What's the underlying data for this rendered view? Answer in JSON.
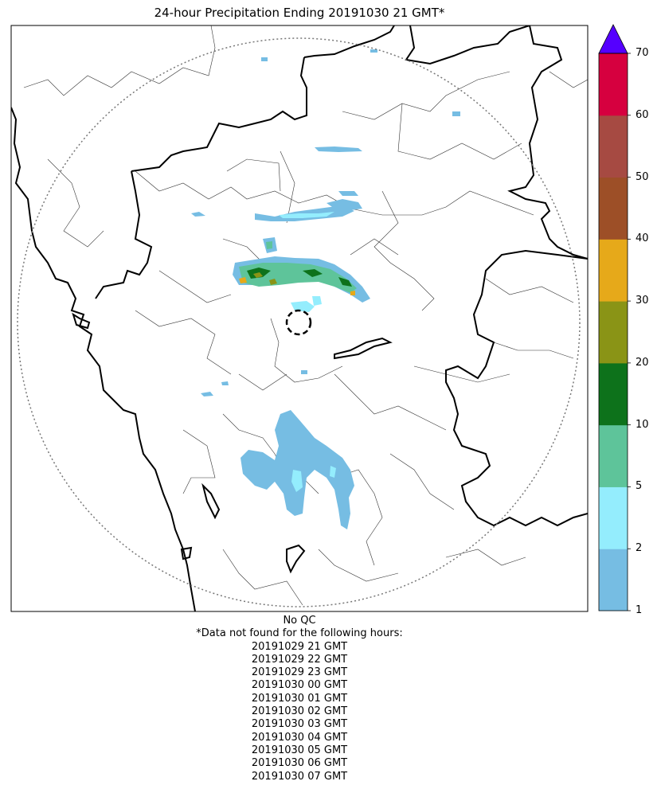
{
  "title": "24-hour Precipitation Ending 20191030 21 GMT*",
  "colorbar": {
    "boundaries": [
      1,
      2,
      5,
      10,
      20,
      30,
      40,
      50,
      60,
      70
    ],
    "tick_labels": [
      "1",
      "2",
      "5",
      "10",
      "20",
      "30",
      "40",
      "50",
      "60",
      "70"
    ],
    "colors": [
      "#76bde3",
      "#94edfd",
      "#5ec49a",
      "#0d721b",
      "#8a9416",
      "#e6a91a",
      "#9d4f27",
      "#a64a42",
      "#d6003f"
    ],
    "extend_max_color": "#5500ff"
  },
  "footer": {
    "qc": "No QC",
    "missing_header": "*Data not found for the following hours:",
    "missing_hours": [
      "20191029 21 GMT",
      "20191029 22 GMT",
      "20191029 23 GMT",
      "20191030 00 GMT",
      "20191030 01 GMT",
      "20191030 02 GMT",
      "20191030 03 GMT",
      "20191030 04 GMT",
      "20191030 05 GMT",
      "20191030 06 GMT",
      "20191030 07 GMT"
    ]
  }
}
